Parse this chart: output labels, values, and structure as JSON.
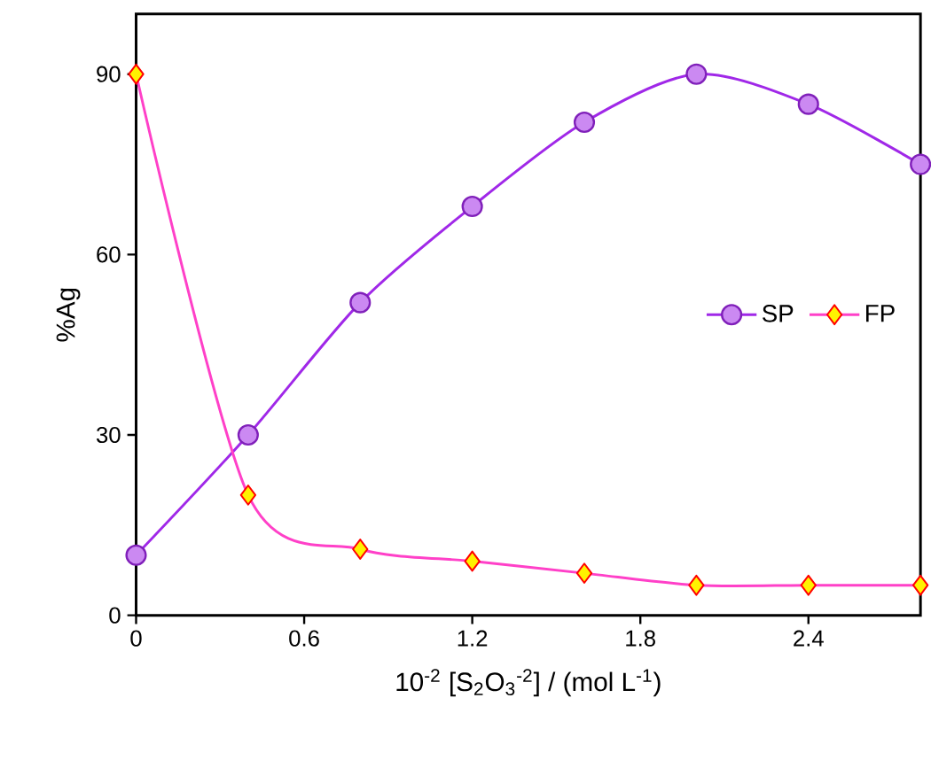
{
  "chart_data": {
    "type": "line",
    "xlabel": "10$^{-2}$ [S$_{2}$O$_{3}$$^{-2}$] / (mol L$^{-1}$)",
    "ylabel": "%Ag",
    "x": [
      0,
      0.4,
      0.8,
      1.2,
      1.6,
      2.0,
      2.4,
      2.8
    ],
    "series": [
      {
        "name": "SP",
        "color": "#a028e8",
        "marker": "circle",
        "values": [
          10,
          30,
          52,
          68,
          82,
          90,
          85,
          75
        ]
      },
      {
        "name": "FP",
        "color": "#ff40c8",
        "marker": "diamond",
        "values": [
          90,
          20,
          11,
          9,
          7,
          5,
          5,
          5
        ]
      }
    ],
    "xlim": [
      0,
      2.8
    ],
    "ylim": [
      0,
      100
    ],
    "xticks": [
      0,
      0.6,
      1.2,
      1.8,
      2.4
    ],
    "yticks": [
      0,
      30,
      60,
      90
    ],
    "grid": false,
    "legend": "right",
    "line_style": "solid"
  }
}
